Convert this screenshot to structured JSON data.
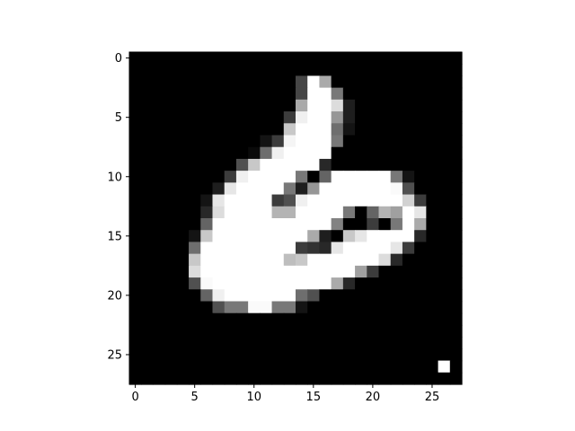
{
  "chart_data": {
    "type": "heatmap",
    "title": "",
    "xlabel": "",
    "ylabel": "",
    "colormap": "gray",
    "x_range": [
      -0.5,
      27.5
    ],
    "y_range": [
      27.5,
      -0.5
    ],
    "x_ticks": [
      0,
      5,
      10,
      15,
      20,
      25
    ],
    "y_ticks": [
      0,
      5,
      10,
      15,
      20,
      25
    ],
    "x_tick_labels": [
      "0",
      "5",
      "10",
      "15",
      "20",
      "25"
    ],
    "y_tick_labels": [
      "0",
      "5",
      "10",
      "15",
      "20",
      "25"
    ],
    "grid": false,
    "value_range": [
      0,
      255
    ],
    "rows": [
      [
        0,
        0,
        0,
        0,
        0,
        0,
        0,
        0,
        0,
        0,
        0,
        0,
        0,
        0,
        0,
        0,
        0,
        0,
        0,
        0,
        0,
        0,
        0,
        0,
        0,
        0,
        0,
        0
      ],
      [
        0,
        0,
        0,
        0,
        0,
        0,
        0,
        0,
        0,
        0,
        0,
        0,
        0,
        0,
        0,
        0,
        0,
        0,
        0,
        0,
        0,
        0,
        0,
        0,
        0,
        0,
        0,
        0
      ],
      [
        0,
        0,
        0,
        0,
        0,
        0,
        0,
        0,
        0,
        0,
        0,
        0,
        0,
        0,
        70,
        255,
        170,
        0,
        0,
        0,
        0,
        0,
        0,
        0,
        0,
        0,
        0,
        0
      ],
      [
        0,
        0,
        0,
        0,
        0,
        0,
        0,
        0,
        0,
        0,
        0,
        0,
        0,
        0,
        70,
        255,
        255,
        120,
        0,
        0,
        0,
        0,
        0,
        0,
        0,
        0,
        0,
        0
      ],
      [
        0,
        0,
        0,
        0,
        0,
        0,
        0,
        0,
        0,
        0,
        0,
        0,
        0,
        0,
        170,
        255,
        255,
        220,
        30,
        0,
        0,
        0,
        0,
        0,
        0,
        0,
        0,
        0
      ],
      [
        0,
        0,
        0,
        0,
        0,
        0,
        0,
        0,
        0,
        0,
        0,
        0,
        0,
        60,
        240,
        255,
        255,
        150,
        30,
        0,
        0,
        0,
        0,
        0,
        0,
        0,
        0,
        0
      ],
      [
        0,
        0,
        0,
        0,
        0,
        0,
        0,
        0,
        0,
        0,
        0,
        0,
        0,
        200,
        255,
        255,
        255,
        110,
        20,
        0,
        0,
        0,
        0,
        0,
        0,
        0,
        0,
        0
      ],
      [
        0,
        0,
        0,
        0,
        0,
        0,
        0,
        0,
        0,
        0,
        0,
        20,
        60,
        245,
        255,
        255,
        255,
        120,
        0,
        0,
        0,
        0,
        0,
        0,
        0,
        0,
        0,
        0
      ],
      [
        0,
        0,
        0,
        0,
        0,
        0,
        0,
        0,
        0,
        0,
        10,
        110,
        240,
        255,
        255,
        255,
        255,
        0,
        0,
        0,
        0,
        0,
        0,
        0,
        0,
        0,
        0,
        0
      ],
      [
        0,
        0,
        0,
        0,
        0,
        0,
        0,
        0,
        0,
        80,
        200,
        255,
        255,
        255,
        255,
        255,
        40,
        0,
        0,
        0,
        0,
        0,
        0,
        0,
        0,
        0,
        0,
        0
      ],
      [
        0,
        0,
        0,
        0,
        0,
        0,
        0,
        0,
        60,
        240,
        255,
        255,
        255,
        255,
        120,
        0,
        100,
        255,
        255,
        255,
        255,
        255,
        120,
        20,
        0,
        0,
        0,
        0
      ],
      [
        0,
        0,
        0,
        0,
        0,
        0,
        0,
        30,
        230,
        255,
        255,
        255,
        255,
        120,
        30,
        150,
        255,
        255,
        255,
        255,
        255,
        255,
        250,
        80,
        0,
        0,
        0,
        0
      ],
      [
        0,
        0,
        0,
        0,
        0,
        0,
        20,
        230,
        255,
        255,
        255,
        255,
        60,
        80,
        240,
        255,
        255,
        255,
        255,
        255,
        255,
        255,
        255,
        210,
        60,
        0,
        0,
        0
      ],
      [
        0,
        0,
        0,
        0,
        0,
        0,
        40,
        220,
        255,
        255,
        255,
        255,
        180,
        180,
        255,
        255,
        255,
        255,
        120,
        0,
        100,
        180,
        160,
        255,
        230,
        0,
        0,
        0
      ],
      [
        0,
        0,
        0,
        0,
        0,
        0,
        100,
        255,
        255,
        255,
        255,
        255,
        255,
        255,
        255,
        255,
        255,
        130,
        0,
        0,
        60,
        0,
        120,
        255,
        170,
        0,
        0,
        0
      ],
      [
        0,
        0,
        0,
        0,
        0,
        20,
        200,
        255,
        255,
        255,
        255,
        255,
        255,
        255,
        255,
        170,
        30,
        0,
        200,
        230,
        255,
        255,
        255,
        255,
        40,
        0,
        0,
        0
      ],
      [
        0,
        0,
        0,
        0,
        0,
        110,
        255,
        255,
        255,
        255,
        255,
        255,
        255,
        255,
        60,
        50,
        40,
        230,
        255,
        255,
        255,
        255,
        230,
        60,
        0,
        0,
        0,
        0
      ],
      [
        0,
        0,
        0,
        0,
        0,
        200,
        255,
        255,
        255,
        255,
        255,
        255,
        255,
        190,
        200,
        255,
        255,
        255,
        255,
        255,
        255,
        220,
        40,
        0,
        0,
        0,
        0,
        0
      ],
      [
        0,
        0,
        0,
        0,
        0,
        220,
        255,
        255,
        255,
        255,
        255,
        255,
        255,
        255,
        255,
        255,
        255,
        255,
        255,
        160,
        60,
        0,
        0,
        0,
        0,
        0,
        0,
        0
      ],
      [
        0,
        0,
        0,
        0,
        0,
        80,
        250,
        255,
        255,
        255,
        255,
        255,
        255,
        255,
        255,
        255,
        255,
        170,
        40,
        0,
        0,
        0,
        0,
        0,
        0,
        0,
        0,
        0
      ],
      [
        0,
        0,
        0,
        0,
        0,
        0,
        100,
        240,
        255,
        255,
        255,
        255,
        255,
        255,
        110,
        80,
        0,
        0,
        0,
        0,
        0,
        0,
        0,
        0,
        0,
        0,
        0,
        0
      ],
      [
        0,
        0,
        0,
        0,
        0,
        0,
        0,
        80,
        120,
        120,
        250,
        250,
        120,
        120,
        20,
        0,
        0,
        0,
        0,
        0,
        0,
        0,
        0,
        0,
        0,
        0,
        0,
        0
      ],
      [
        0,
        0,
        0,
        0,
        0,
        0,
        0,
        0,
        0,
        0,
        0,
        0,
        0,
        0,
        0,
        0,
        0,
        0,
        0,
        0,
        0,
        0,
        0,
        0,
        0,
        0,
        0,
        0
      ],
      [
        0,
        0,
        0,
        0,
        0,
        0,
        0,
        0,
        0,
        0,
        0,
        0,
        0,
        0,
        0,
        0,
        0,
        0,
        0,
        0,
        0,
        0,
        0,
        0,
        0,
        0,
        0,
        0
      ],
      [
        0,
        0,
        0,
        0,
        0,
        0,
        0,
        0,
        0,
        0,
        0,
        0,
        0,
        0,
        0,
        0,
        0,
        0,
        0,
        0,
        0,
        0,
        0,
        0,
        0,
        0,
        0,
        0
      ],
      [
        0,
        0,
        0,
        0,
        0,
        0,
        0,
        0,
        0,
        0,
        0,
        0,
        0,
        0,
        0,
        0,
        0,
        0,
        0,
        0,
        0,
        0,
        0,
        0,
        0,
        0,
        0,
        0
      ],
      [
        0,
        0,
        0,
        0,
        0,
        0,
        0,
        0,
        0,
        0,
        0,
        0,
        0,
        0,
        0,
        0,
        0,
        0,
        0,
        0,
        0,
        0,
        0,
        0,
        0,
        0,
        255,
        0
      ],
      [
        0,
        0,
        0,
        0,
        0,
        0,
        0,
        0,
        0,
        0,
        0,
        0,
        0,
        0,
        0,
        0,
        0,
        0,
        0,
        0,
        0,
        0,
        0,
        0,
        0,
        0,
        0,
        0
      ]
    ]
  }
}
